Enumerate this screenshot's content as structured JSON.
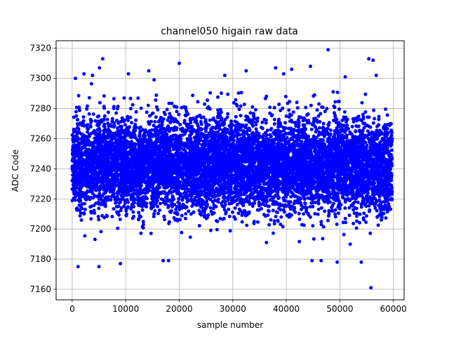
{
  "chart_data": {
    "type": "scatter",
    "title": "channel050 higain raw data",
    "xlabel": "sample number",
    "ylabel": "ADC Code",
    "xlim": [
      -3000,
      62000
    ],
    "ylim": [
      7153,
      7325
    ],
    "xticks": [
      0,
      10000,
      20000,
      30000,
      40000,
      50000,
      60000
    ],
    "xtick_labels": [
      "0",
      "10000",
      "20000",
      "30000",
      "40000",
      "50000",
      "60000"
    ],
    "yticks": [
      7160,
      7180,
      7200,
      7220,
      7240,
      7260,
      7280,
      7300,
      7320
    ],
    "ytick_labels": [
      "7160",
      "7180",
      "7200",
      "7220",
      "7240",
      "7260",
      "7280",
      "7300",
      "7320"
    ],
    "grid": true,
    "marker_color": "#0000ff",
    "series": [
      {
        "x_range": [
          0,
          59800
        ],
        "y_dense_band": [
          7200,
          7285
        ],
        "outliers": [
          {
            "x": 600,
            "y": 7300
          },
          {
            "x": 1100,
            "y": 7175
          },
          {
            "x": 2200,
            "y": 7303
          },
          {
            "x": 3800,
            "y": 7302
          },
          {
            "x": 5100,
            "y": 7307
          },
          {
            "x": 5700,
            "y": 7313
          },
          {
            "x": 5000,
            "y": 7175
          },
          {
            "x": 9000,
            "y": 7177
          },
          {
            "x": 10500,
            "y": 7303
          },
          {
            "x": 14300,
            "y": 7305
          },
          {
            "x": 15300,
            "y": 7299
          },
          {
            "x": 17000,
            "y": 7179
          },
          {
            "x": 18000,
            "y": 7179
          },
          {
            "x": 20000,
            "y": 7310
          },
          {
            "x": 28500,
            "y": 7302
          },
          {
            "x": 32500,
            "y": 7305
          },
          {
            "x": 38000,
            "y": 7307
          },
          {
            "x": 39500,
            "y": 7303
          },
          {
            "x": 41000,
            "y": 7306
          },
          {
            "x": 44500,
            "y": 7308
          },
          {
            "x": 44800,
            "y": 7179
          },
          {
            "x": 46500,
            "y": 7179
          },
          {
            "x": 47800,
            "y": 7319
          },
          {
            "x": 49500,
            "y": 7178
          },
          {
            "x": 51000,
            "y": 7301
          },
          {
            "x": 54000,
            "y": 7178
          },
          {
            "x": 55400,
            "y": 7313
          },
          {
            "x": 55800,
            "y": 7161
          },
          {
            "x": 56200,
            "y": 7312
          },
          {
            "x": 56800,
            "y": 7302
          }
        ]
      }
    ]
  }
}
